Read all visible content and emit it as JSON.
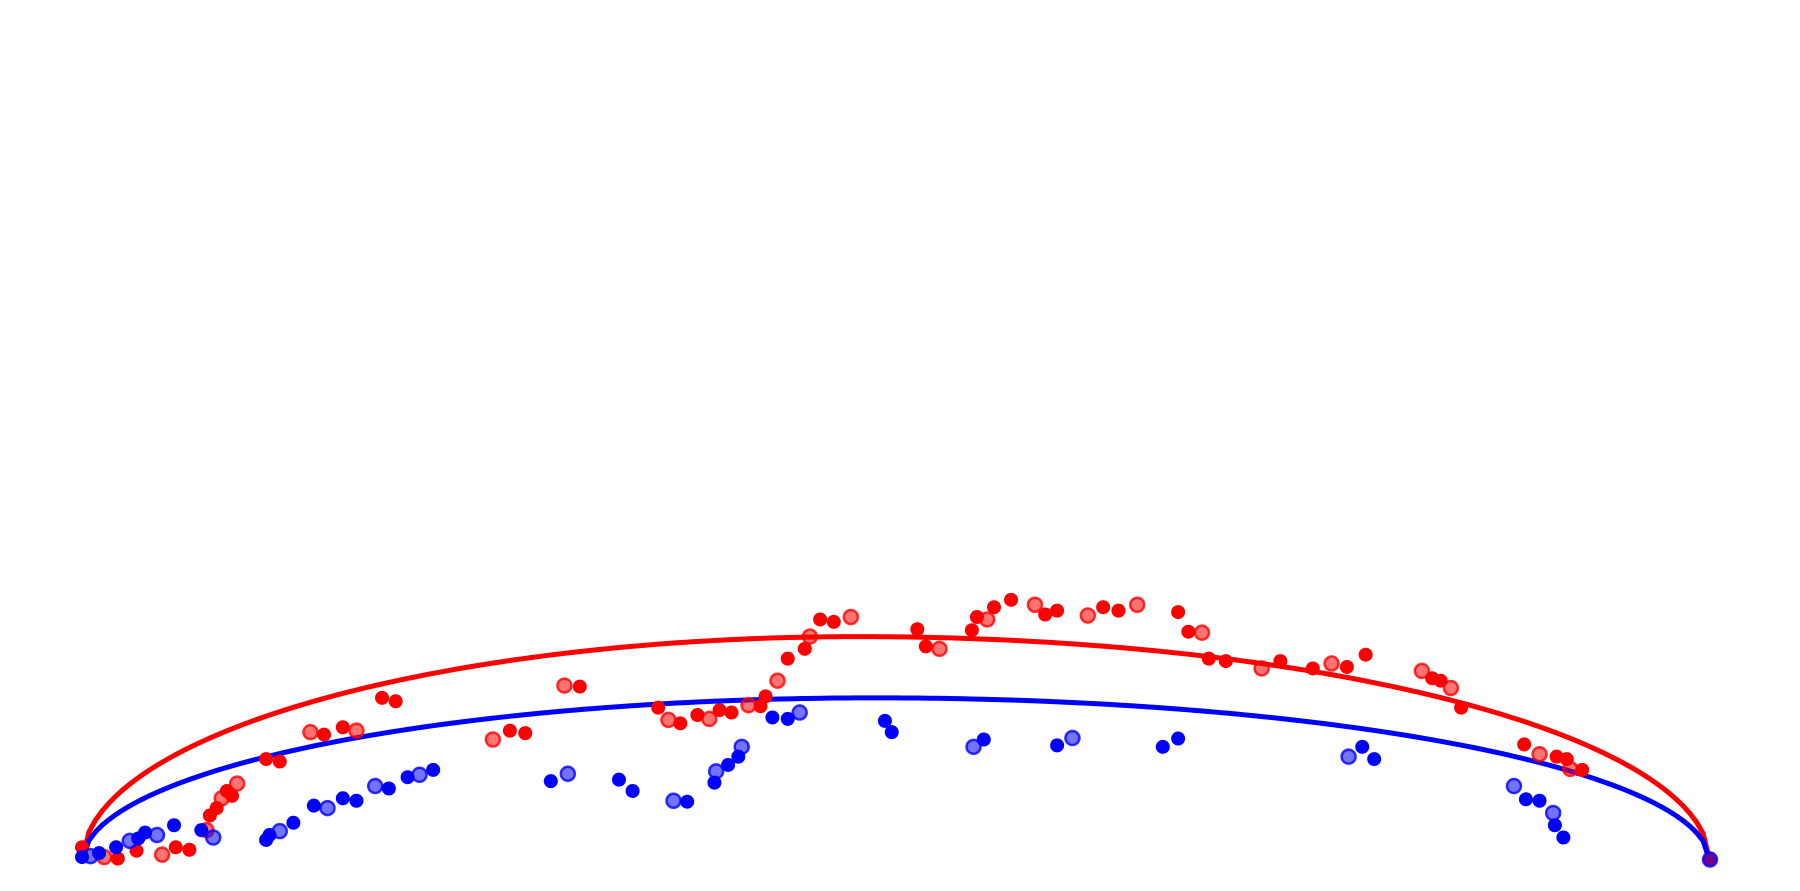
{
  "chart_data": {
    "type": "scatter",
    "title": "",
    "xlabel": "",
    "ylabel": "",
    "axes_visible": false,
    "grid": false,
    "legend": "none",
    "xlim": [
      0,
      100
    ],
    "ylim": [
      0,
      100
    ],
    "colors": {
      "red": "#ff0000",
      "blue": "#0000ff"
    },
    "series": [
      {
        "color": "#ff0000",
        "points": [
          [
            4.5,
            3.0
          ],
          [
            5.8,
            1.0
          ],
          [
            6.6,
            0.7
          ],
          [
            7.7,
            2.3
          ],
          [
            9.2,
            1.5
          ],
          [
            10.0,
            3.0
          ],
          [
            10.8,
            2.5
          ],
          [
            11.8,
            6.5
          ],
          [
            12.0,
            9.5
          ],
          [
            12.4,
            11.0
          ],
          [
            12.7,
            13.0
          ],
          [
            13.0,
            14.5
          ],
          [
            13.3,
            13.5
          ],
          [
            13.6,
            16.0
          ],
          [
            15.3,
            21.0
          ],
          [
            16.1,
            20.5
          ],
          [
            17.9,
            26.5
          ],
          [
            18.7,
            26.0
          ],
          [
            19.8,
            27.5
          ],
          [
            20.6,
            26.8
          ],
          [
            22.1,
            33.5
          ],
          [
            22.9,
            32.8
          ],
          [
            28.6,
            25.0
          ],
          [
            29.6,
            26.8
          ],
          [
            30.5,
            26.3
          ],
          [
            32.8,
            36.0
          ],
          [
            33.7,
            35.8
          ],
          [
            38.3,
            31.5
          ],
          [
            38.9,
            29.0
          ],
          [
            39.6,
            28.3
          ],
          [
            40.6,
            30.0
          ],
          [
            41.3,
            29.2
          ],
          [
            41.9,
            31.0
          ],
          [
            42.6,
            30.5
          ],
          [
            43.6,
            32.0
          ],
          [
            44.3,
            31.8
          ],
          [
            44.6,
            33.8
          ],
          [
            45.3,
            37.0
          ],
          [
            45.9,
            41.5
          ],
          [
            46.9,
            43.5
          ],
          [
            47.2,
            46.0
          ],
          [
            47.8,
            49.5
          ],
          [
            48.6,
            49.0
          ],
          [
            49.6,
            50.0
          ],
          [
            53.5,
            47.5
          ],
          [
            54.0,
            44.0
          ],
          [
            54.8,
            43.5
          ],
          [
            56.7,
            47.3
          ],
          [
            57.0,
            50.0
          ],
          [
            57.6,
            49.5
          ],
          [
            58.0,
            52.0
          ],
          [
            59.0,
            53.5
          ],
          [
            60.4,
            52.5
          ],
          [
            61.0,
            50.5
          ],
          [
            61.7,
            51.3
          ],
          [
            63.5,
            50.3
          ],
          [
            64.4,
            52.0
          ],
          [
            65.3,
            51.3
          ],
          [
            66.4,
            52.5
          ],
          [
            68.8,
            51.0
          ],
          [
            69.4,
            47.0
          ],
          [
            70.2,
            46.8
          ],
          [
            70.6,
            41.5
          ],
          [
            71.6,
            41.0
          ],
          [
            73.7,
            39.5
          ],
          [
            74.8,
            41.0
          ],
          [
            76.7,
            39.5
          ],
          [
            77.8,
            40.5
          ],
          [
            78.7,
            39.8
          ],
          [
            79.8,
            42.3
          ],
          [
            83.1,
            39.0
          ],
          [
            83.7,
            37.5
          ],
          [
            84.2,
            37.0
          ],
          [
            84.8,
            35.5
          ],
          [
            85.4,
            31.5
          ],
          [
            89.1,
            24.0
          ],
          [
            90.0,
            22.0
          ],
          [
            91.0,
            21.5
          ],
          [
            91.6,
            21.0
          ],
          [
            91.8,
            19.0
          ],
          [
            92.5,
            18.8
          ],
          [
            100.0,
            0.5
          ]
        ]
      },
      {
        "color": "#0000ff",
        "points": [
          [
            4.5,
            1.0
          ],
          [
            5.0,
            1.2
          ],
          [
            5.5,
            1.8
          ],
          [
            6.5,
            3.0
          ],
          [
            7.3,
            4.3
          ],
          [
            7.8,
            4.8
          ],
          [
            8.2,
            6.0
          ],
          [
            8.9,
            5.5
          ],
          [
            9.9,
            7.5
          ],
          [
            11.5,
            6.5
          ],
          [
            12.2,
            5.0
          ],
          [
            15.3,
            4.5
          ],
          [
            15.5,
            5.5
          ],
          [
            16.1,
            6.3
          ],
          [
            16.9,
            8.0
          ],
          [
            18.1,
            11.5
          ],
          [
            18.9,
            11.0
          ],
          [
            19.8,
            13.0
          ],
          [
            20.6,
            12.5
          ],
          [
            21.7,
            15.5
          ],
          [
            22.5,
            15.0
          ],
          [
            23.6,
            17.3
          ],
          [
            24.3,
            17.8
          ],
          [
            25.1,
            18.8
          ],
          [
            32.0,
            16.5
          ],
          [
            33.0,
            18.0
          ],
          [
            36.0,
            16.8
          ],
          [
            36.8,
            14.5
          ],
          [
            39.2,
            12.5
          ],
          [
            40.0,
            12.3
          ],
          [
            41.6,
            16.2
          ],
          [
            41.7,
            18.5
          ],
          [
            42.4,
            19.8
          ],
          [
            43.0,
            21.5
          ],
          [
            43.2,
            23.5
          ],
          [
            45.0,
            29.5
          ],
          [
            45.9,
            29.2
          ],
          [
            46.6,
            30.5
          ],
          [
            51.6,
            28.8
          ],
          [
            52.0,
            26.5
          ],
          [
            56.8,
            23.5
          ],
          [
            57.4,
            25.0
          ],
          [
            61.7,
            23.8
          ],
          [
            62.6,
            25.3
          ],
          [
            67.9,
            23.5
          ],
          [
            68.8,
            25.2
          ],
          [
            78.8,
            21.5
          ],
          [
            79.6,
            23.5
          ],
          [
            80.3,
            21.0
          ],
          [
            88.5,
            15.5
          ],
          [
            89.2,
            12.8
          ],
          [
            90.0,
            12.5
          ],
          [
            90.8,
            10.0
          ],
          [
            90.9,
            7.5
          ],
          [
            91.4,
            5.0
          ],
          [
            100.0,
            0.5
          ]
        ]
      }
    ],
    "curves": [
      {
        "color": "#ff0000",
        "x_range": [
          4.5,
          100.0
        ],
        "peak_x": 50.0,
        "peak_y": 46.0
      },
      {
        "color": "#0000ff",
        "x_range": [
          4.5,
          100.0
        ],
        "peak_x": 51.0,
        "peak_y": 33.5
      }
    ]
  }
}
